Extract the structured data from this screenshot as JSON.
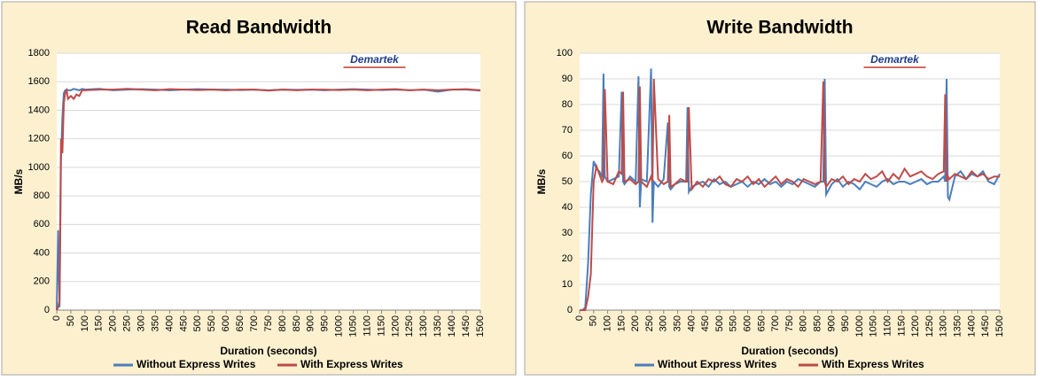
{
  "chart_data": [
    {
      "type": "line",
      "title": "Read Bandwidth",
      "watermark": "Demartek",
      "xlabel": "Duration (seconds)",
      "ylabel": "MB/s",
      "x": [
        0,
        5,
        10,
        15,
        20,
        25,
        30,
        35,
        40,
        50,
        60,
        70,
        80,
        90,
        100,
        150,
        200,
        250,
        300,
        350,
        400,
        450,
        500,
        550,
        600,
        650,
        700,
        750,
        800,
        850,
        900,
        950,
        1000,
        1050,
        1100,
        1150,
        1200,
        1250,
        1300,
        1350,
        1400,
        1450,
        1500
      ],
      "series": [
        {
          "name": "Without Express Writes",
          "color": "#4a7ebb",
          "values": [
            0,
            560,
            20,
            1050,
            1350,
            1520,
            1540,
            1545,
            1540,
            1540,
            1550,
            1545,
            1540,
            1550,
            1545,
            1550,
            1540,
            1545,
            1548,
            1545,
            1540,
            1545,
            1548,
            1545,
            1545,
            1542,
            1545,
            1540,
            1545,
            1543,
            1545,
            1540,
            1545,
            1548,
            1545,
            1542,
            1545,
            1540,
            1545,
            1530,
            1545,
            1545,
            1538
          ]
        },
        {
          "name": "With Express Writes",
          "color": "#be4b48",
          "values": [
            0,
            20,
            70,
            1200,
            1100,
            1450,
            1520,
            1540,
            1480,
            1500,
            1480,
            1510,
            1500,
            1540,
            1540,
            1545,
            1545,
            1550,
            1545,
            1540,
            1548,
            1545,
            1542,
            1545,
            1540,
            1545,
            1545,
            1538,
            1545,
            1540,
            1545,
            1545,
            1542,
            1545,
            1540,
            1545,
            1548,
            1540,
            1545,
            1540,
            1545,
            1548,
            1540
          ]
        }
      ],
      "xlim": [
        0,
        1500
      ],
      "xticks": [
        0,
        50,
        100,
        150,
        200,
        250,
        300,
        350,
        400,
        450,
        500,
        550,
        600,
        650,
        700,
        750,
        800,
        850,
        900,
        950,
        1000,
        1050,
        1100,
        1150,
        1200,
        1250,
        1300,
        1350,
        1400,
        1450,
        1500
      ],
      "ylim": [
        0,
        1800
      ],
      "yticks": [
        0,
        200,
        400,
        600,
        800,
        1000,
        1200,
        1400,
        1600,
        1800
      ],
      "grid": true,
      "legend": "bottom"
    },
    {
      "type": "line",
      "title": "Write Bandwidth",
      "watermark": "Demartek",
      "xlabel": "Duration (seconds)",
      "ylabel": "MB/s",
      "x": [
        0,
        10,
        20,
        30,
        40,
        50,
        60,
        70,
        80,
        85,
        90,
        100,
        120,
        140,
        150,
        155,
        160,
        180,
        200,
        210,
        215,
        220,
        240,
        255,
        260,
        265,
        280,
        300,
        315,
        320,
        325,
        340,
        360,
        380,
        385,
        390,
        400,
        420,
        440,
        460,
        480,
        500,
        520,
        540,
        560,
        580,
        600,
        620,
        640,
        660,
        680,
        700,
        720,
        740,
        760,
        780,
        800,
        820,
        840,
        860,
        870,
        875,
        880,
        900,
        920,
        940,
        960,
        980,
        1000,
        1020,
        1040,
        1060,
        1080,
        1100,
        1120,
        1140,
        1160,
        1180,
        1200,
        1220,
        1240,
        1260,
        1280,
        1300,
        1305,
        1310,
        1315,
        1320,
        1340,
        1360,
        1380,
        1400,
        1420,
        1440,
        1460,
        1480,
        1500
      ],
      "series": [
        {
          "name": "Without Express Writes",
          "color": "#4a7ebb",
          "values": [
            0,
            0,
            1,
            18,
            45,
            58,
            55,
            54,
            52,
            92,
            52,
            50,
            51,
            52,
            85,
            50,
            49,
            52,
            50,
            91,
            40,
            51,
            50,
            94,
            34,
            50,
            48,
            51,
            73,
            48,
            47,
            49,
            50,
            50,
            79,
            46,
            48,
            49,
            50,
            48,
            51,
            49,
            50,
            48,
            49,
            50,
            48,
            50,
            49,
            51,
            49,
            50,
            48,
            50,
            49,
            51,
            50,
            49,
            48,
            50,
            50,
            90,
            45,
            49,
            51,
            48,
            50,
            49,
            47,
            50,
            49,
            48,
            50,
            51,
            49,
            50,
            50,
            49,
            50,
            51,
            49,
            50,
            50,
            52,
            50,
            90,
            44,
            43,
            52,
            54,
            51,
            53,
            52,
            54,
            50,
            49,
            53
          ]
        },
        {
          "name": "With Express Writes",
          "color": "#be4b48",
          "values": [
            0,
            0,
            0,
            5,
            14,
            50,
            56,
            53,
            50,
            51,
            86,
            50,
            49,
            54,
            53,
            85,
            50,
            51,
            49,
            50,
            87,
            50,
            48,
            52,
            50,
            90,
            51,
            49,
            50,
            76,
            48,
            49,
            51,
            50,
            50,
            79,
            47,
            50,
            48,
            51,
            50,
            52,
            49,
            48,
            51,
            50,
            52,
            49,
            51,
            48,
            50,
            52,
            49,
            51,
            50,
            48,
            51,
            50,
            49,
            50,
            89,
            50,
            48,
            51,
            50,
            52,
            49,
            51,
            50,
            53,
            51,
            52,
            54,
            50,
            53,
            51,
            55,
            52,
            53,
            54,
            52,
            51,
            53,
            54,
            84,
            50,
            52,
            51,
            53,
            52,
            51,
            54,
            52,
            53,
            51,
            52,
            52
          ]
        }
      ],
      "xlim": [
        0,
        1500
      ],
      "xticks": [
        0,
        50,
        100,
        150,
        200,
        250,
        300,
        350,
        400,
        450,
        500,
        550,
        600,
        650,
        700,
        750,
        800,
        850,
        900,
        950,
        1000,
        1050,
        1100,
        1150,
        1200,
        1250,
        1300,
        1350,
        1400,
        1450,
        1500
      ],
      "ylim": [
        0,
        100
      ],
      "yticks": [
        0,
        10,
        20,
        30,
        40,
        50,
        60,
        70,
        80,
        90,
        100
      ],
      "grid": true,
      "legend": "bottom"
    }
  ]
}
